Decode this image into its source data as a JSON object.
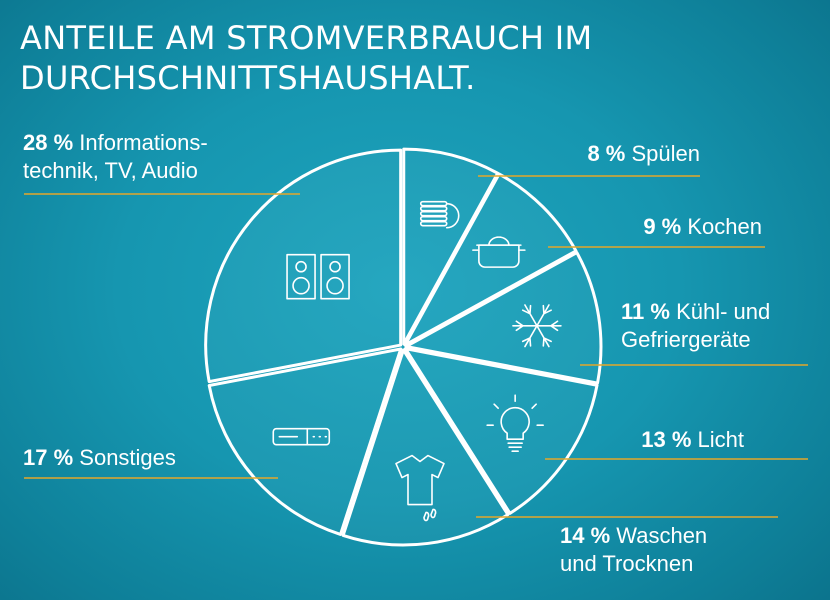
{
  "title_line1": "ANTEILE AM STROMVERBRAUCH IM",
  "title_line2": "DURCHSCHNITTSHAUSHALT.",
  "colors": {
    "line": "#ffffff",
    "leader": "#e4a72a",
    "background": "#1696b0"
  },
  "chart_data": {
    "type": "pie",
    "title": "ANTEILE AM STROMVERBRAUCH IM DURCHSCHNITTSHAUSHALT.",
    "unit": "%",
    "slices": [
      {
        "pct_label": "8 %",
        "value": 8,
        "lines": [
          "Spülen"
        ],
        "icon": "dishes-icon"
      },
      {
        "pct_label": "9 %",
        "value": 9,
        "lines": [
          "Kochen"
        ],
        "icon": "cooking-pot-icon"
      },
      {
        "pct_label": "11 %",
        "value": 11,
        "lines": [
          "Kühl- und",
          "Gefriergeräte"
        ],
        "icon": "snowflake-icon"
      },
      {
        "pct_label": "13 %",
        "value": 13,
        "lines": [
          "Licht"
        ],
        "icon": "light-bulb-icon"
      },
      {
        "pct_label": "14 %",
        "value": 14,
        "lines": [
          "Waschen",
          "und Trocknen"
        ],
        "icon": "shirt-icon"
      },
      {
        "pct_label": "17 %",
        "value": 17,
        "lines": [
          "Sonstiges"
        ],
        "icon": "device-icon"
      },
      {
        "pct_label": "28 %",
        "value": 28,
        "lines": [
          "Informations-",
          "technik, TV, Audio"
        ],
        "icon": "speaker-icon"
      }
    ]
  }
}
